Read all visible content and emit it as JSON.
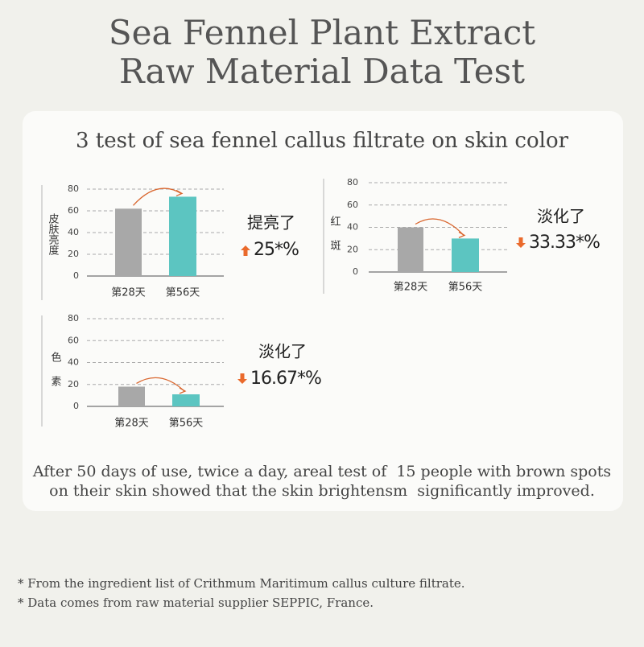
{
  "title": [
    "Sea Fennel Plant Extract",
    "Raw Material Data Test"
  ],
  "subtitle": "3 test of sea fennel callus filtrate on skin color",
  "chart_data": [
    {
      "type": "bar",
      "ylabel": "皮肤亮度",
      "categories": [
        "第28天",
        "第56天"
      ],
      "values": [
        62,
        73
      ],
      "colors": [
        "#a8a8a8",
        "#5cc5c1"
      ],
      "ylim": [
        0,
        80
      ],
      "yticks": [
        0,
        20,
        40,
        60,
        80
      ],
      "grid": true,
      "change": {
        "text": "提亮了",
        "value": 25,
        "value_label": "25*%",
        "direction": "up"
      }
    },
    {
      "type": "bar",
      "ylabel": "红斑",
      "categories": [
        "第28天",
        "第56天"
      ],
      "values": [
        40,
        30
      ],
      "colors": [
        "#a8a8a8",
        "#5cc5c1"
      ],
      "ylim": [
        0,
        80
      ],
      "yticks": [
        0,
        20,
        40,
        60,
        80
      ],
      "grid": true,
      "change": {
        "text": "淡化了",
        "value": 33.33,
        "value_label": "33.33*%",
        "direction": "down"
      }
    },
    {
      "type": "bar",
      "ylabel": "色素",
      "categories": [
        "第28天",
        "第56天"
      ],
      "values": [
        18,
        11
      ],
      "colors": [
        "#a8a8a8",
        "#5cc5c1"
      ],
      "ylim": [
        0,
        80
      ],
      "yticks": [
        0,
        20,
        40,
        60,
        80
      ],
      "grid": true,
      "change": {
        "text": "淡化了",
        "value": 16.67,
        "value_label": "16.67*%",
        "direction": "down"
      }
    }
  ],
  "paragraph": [
    "After 50 days of use, twice a day, areal test of  15 people with brown spots",
    "on their skin showed that the skin brightensm  significantly improved."
  ],
  "footnotes": [
    "* From the ingredient list of Crithmum Maritimum callus culture filtrate.",
    "* Data comes from raw material supplier SEPPIC, France."
  ]
}
